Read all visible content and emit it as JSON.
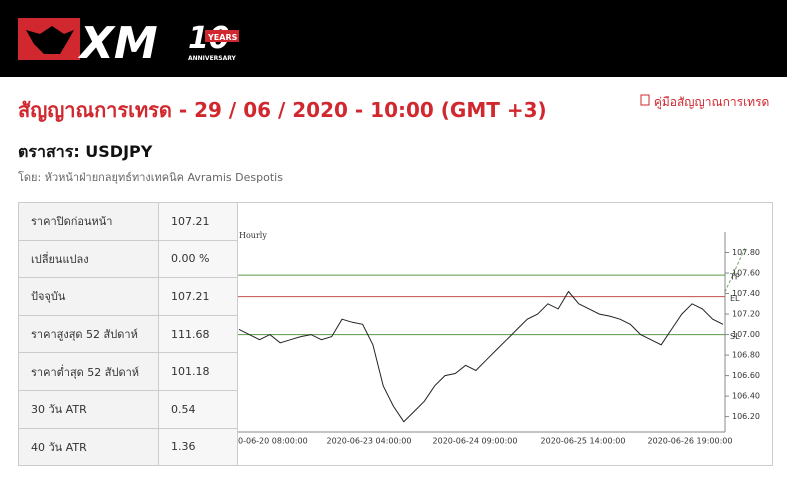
{
  "header": {
    "logo_text": "XM",
    "logo_years": "10",
    "logo_badge": "YEARS",
    "logo_sub": "ANNIVERSARY"
  },
  "title": "สัญญาณการเทรด - 29 / 06 / 2020 - 10:00 (GMT +3)",
  "guide_link": "คู่มือสัญญาณการเทรด",
  "instrument": "ตราสาร: USDJPY",
  "author": "โดย: หัวหน้าฝ่ายกลยุทธ์ทางเทคนิค Avramis Despotis",
  "table": {
    "rows": [
      [
        "ราคาปิดก่อนหน้า",
        "107.21"
      ],
      [
        "เปลี่ยนแปลง",
        "0.00 %"
      ],
      [
        "ปัจจุบัน",
        "107.21"
      ],
      [
        "ราคาสูงสุด 52 สัปดาห์",
        "111.68"
      ],
      [
        "ราคาต่ำสุด 52 สัปดาห์",
        "101.18"
      ],
      [
        "30 วัน ATR",
        "0.54"
      ],
      [
        "40 วัน ATR",
        "1.36"
      ]
    ]
  },
  "chart": {
    "label": "Hourly",
    "ylim": [
      106.05,
      108.0
    ],
    "yticks": [
      {
        "value": 106.2,
        "label": "106.20"
      },
      {
        "value": 106.4,
        "label": "106.40"
      },
      {
        "value": 106.6,
        "label": "106.60"
      },
      {
        "value": 106.8,
        "label": "106.80"
      },
      {
        "value": 107.0,
        "label": "107.00"
      },
      {
        "value": 107.2,
        "label": "107.20"
      },
      {
        "value": 107.4,
        "label": "107.40"
      },
      {
        "value": 107.6,
        "label": "107.60"
      },
      {
        "value": 107.8,
        "label": "107.80"
      }
    ],
    "xlabels": [
      "0-06-20 08:00:00",
      "2020-06-23 04:00:00",
      "2020-06-24 09:00:00",
      "2020-06-25 14:00:00",
      "2020-06-26 19:00:00"
    ],
    "levels": [
      {
        "name": "TP",
        "value": 107.58,
        "color": "#5a9a4a"
      },
      {
        "name": "EL",
        "value": 107.37,
        "color": "#c0504d"
      },
      {
        "name": "SL",
        "value": 107.0,
        "color": "#5a9a4a"
      }
    ],
    "price": {
      "color": "#222222",
      "values": [
        107.05,
        107.0,
        106.95,
        107.0,
        106.92,
        106.95,
        106.98,
        107.0,
        106.95,
        106.98,
        107.15,
        107.12,
        107.1,
        106.9,
        106.5,
        106.3,
        106.15,
        106.25,
        106.35,
        106.5,
        106.6,
        106.62,
        106.7,
        106.65,
        106.75,
        106.85,
        106.95,
        107.05,
        107.15,
        107.2,
        107.3,
        107.25,
        107.42,
        107.3,
        107.25,
        107.2,
        107.18,
        107.15,
        107.1,
        107.0,
        106.95,
        106.9,
        107.05,
        107.2,
        107.3,
        107.25,
        107.15,
        107.1
      ]
    }
  }
}
